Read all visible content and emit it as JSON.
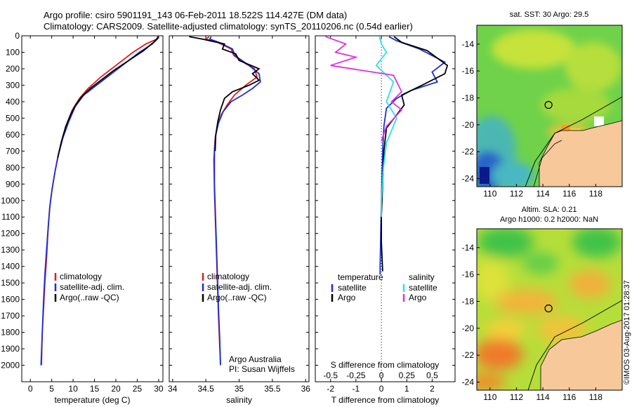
{
  "header": {
    "line1": "Argo profile: csiro 5901191_143 06-Feb-2011 18.522S 114.427E (DM data)",
    "line2": "Climatology: CARS2009. Satellite-adjusted climatology: synTS_20110206.nc (0.54d earlier)"
  },
  "footer": {
    "credit": "©IMOS 03-Aug-2017 01:28:37"
  },
  "colors": {
    "climatology": "#e01b1b",
    "satellite": "#1a2fd6",
    "argo": "#000000",
    "salinity_satellite": "#28e0e8",
    "salinity_argo": "#e030e0",
    "land": "#f7c89a"
  },
  "chart_data": [
    {
      "type": "line",
      "panel": "temperature",
      "xlabel": "temperature (deg C)",
      "ylabel": "",
      "xlim": [
        -2,
        31
      ],
      "ylim": [
        2100,
        0
      ],
      "xticks": [
        0,
        5,
        10,
        15,
        20,
        25,
        30
      ],
      "yticks": [
        0,
        100,
        200,
        300,
        400,
        500,
        600,
        700,
        800,
        900,
        1000,
        1100,
        1200,
        1300,
        1400,
        1500,
        1600,
        1700,
        1800,
        1900,
        2000
      ],
      "legend": [
        "climatology",
        "satellite-adj. clim.",
        "Argo(..raw -QC)"
      ],
      "legend_position": "bottom-right",
      "series": [
        {
          "name": "climatology",
          "points": [
            [
              29.8,
              5
            ],
            [
              29.6,
              20
            ],
            [
              27,
              50
            ],
            [
              24,
              100
            ],
            [
              20,
              180
            ],
            [
              16.5,
              250
            ],
            [
              13.5,
              320
            ],
            [
              11.5,
              380
            ],
            [
              9.8,
              450
            ],
            [
              8.3,
              550
            ],
            [
              7.2,
              650
            ],
            [
              6.3,
              750
            ],
            [
              5.6,
              850
            ],
            [
              5.0,
              950
            ],
            [
              4.5,
              1050
            ],
            [
              4.1,
              1200
            ],
            [
              3.8,
              1350
            ],
            [
              3.4,
              1500
            ],
            [
              3.1,
              1650
            ],
            [
              2.8,
              1800
            ],
            [
              2.6,
              2000
            ]
          ]
        },
        {
          "name": "satellite-adj. clim.",
          "points": [
            [
              29.9,
              5
            ],
            [
              29.7,
              20
            ],
            [
              28.5,
              50
            ],
            [
              25.5,
              100
            ],
            [
              22,
              170
            ],
            [
              18,
              250
            ],
            [
              15,
              310
            ],
            [
              12.5,
              360
            ],
            [
              10.5,
              430
            ],
            [
              9,
              520
            ],
            [
              7.6,
              620
            ],
            [
              6.6,
              720
            ],
            [
              5.8,
              820
            ],
            [
              5.1,
              930
            ],
            [
              4.6,
              1030
            ],
            [
              4.2,
              1150
            ],
            [
              3.8,
              1300
            ],
            [
              3.4,
              1450
            ],
            [
              3.1,
              1600
            ],
            [
              2.8,
              1800
            ],
            [
              2.5,
              2000
            ]
          ]
        },
        {
          "name": "Argo(..raw -QC)",
          "points": [
            [
              29.9,
              5
            ],
            [
              29.7,
              15
            ],
            [
              28.8,
              40
            ],
            [
              26.5,
              90
            ],
            [
              23,
              150
            ],
            [
              19.5,
              210
            ],
            [
              16.5,
              270
            ],
            [
              14,
              320
            ],
            [
              12,
              370
            ],
            [
              10.6,
              420
            ],
            [
              9.4,
              480
            ],
            [
              8.3,
              550
            ],
            [
              7.3,
              640
            ],
            [
              6.4,
              740
            ]
          ]
        }
      ]
    },
    {
      "type": "line",
      "panel": "salinity",
      "xlabel": "salinity",
      "ylabel": "",
      "xlim": [
        33.95,
        36.05
      ],
      "ylim": [
        2100,
        0
      ],
      "xticks": [
        34,
        34.5,
        35,
        35.5,
        36
      ],
      "legend": [
        "climatology",
        "satellite-adj. clim.",
        "Argo(..raw -QC)"
      ],
      "legend_position": "bottom-right",
      "annotations": [
        "Argo Australia",
        "PI: Susan Wijffels"
      ],
      "series": [
        {
          "name": "climatology",
          "points": [
            [
              34.55,
              5
            ],
            [
              34.5,
              20
            ],
            [
              34.68,
              40
            ],
            [
              34.88,
              80
            ],
            [
              34.92,
              120
            ],
            [
              35.1,
              170
            ],
            [
              35.23,
              200
            ],
            [
              35.27,
              250
            ],
            [
              35.1,
              300
            ],
            [
              34.93,
              360
            ],
            [
              34.82,
              420
            ],
            [
              34.73,
              480
            ],
            [
              34.68,
              540
            ],
            [
              34.64,
              620
            ],
            [
              34.62,
              750
            ],
            [
              34.63,
              950
            ],
            [
              34.65,
              1200
            ],
            [
              34.67,
              1450
            ],
            [
              34.69,
              1700
            ],
            [
              34.72,
              2000
            ]
          ]
        },
        {
          "name": "satellite-adj. clim.",
          "points": [
            [
              34.58,
              5
            ],
            [
              34.56,
              20
            ],
            [
              34.7,
              40
            ],
            [
              34.9,
              80
            ],
            [
              34.94,
              120
            ],
            [
              35.15,
              180
            ],
            [
              35.3,
              230
            ],
            [
              35.32,
              280
            ],
            [
              35.2,
              320
            ],
            [
              35.05,
              360
            ],
            [
              34.88,
              400
            ],
            [
              34.76,
              460
            ],
            [
              34.69,
              530
            ],
            [
              34.65,
              600
            ],
            [
              34.63,
              700
            ],
            [
              34.63,
              900
            ],
            [
              34.65,
              1150
            ],
            [
              34.67,
              1400
            ],
            [
              34.69,
              1650
            ],
            [
              34.71,
              1850
            ],
            [
              34.72,
              2000
            ]
          ]
        },
        {
          "name": "Argo(..raw -QC)",
          "points": [
            [
              34.25,
              5
            ],
            [
              34.45,
              20
            ],
            [
              34.78,
              50
            ],
            [
              34.75,
              80
            ],
            [
              34.95,
              110
            ],
            [
              35.0,
              150
            ],
            [
              35.3,
              200
            ],
            [
              35.2,
              230
            ],
            [
              35.3,
              270
            ],
            [
              35.15,
              300
            ],
            [
              34.9,
              340
            ],
            [
              34.78,
              380
            ],
            [
              34.72,
              450
            ],
            [
              34.68,
              520
            ],
            [
              34.65,
              600
            ],
            [
              34.64,
              700
            ]
          ]
        }
      ]
    },
    {
      "type": "line",
      "panel": "difference",
      "xlabel": "T difference from climatology",
      "xlabel_top": "S difference from climatology",
      "xlim": [
        -2.6,
        2.9
      ],
      "ylim": [
        2100,
        0
      ],
      "xticks": [
        -2,
        -1,
        0,
        1,
        2
      ],
      "s_ticks": [
        -0.5,
        -0.25,
        0,
        0.25,
        0.5
      ],
      "zero_line": "dotted",
      "legend_temperature": {
        "header": "temperature",
        "items": [
          "satellite",
          "Argo"
        ]
      },
      "legend_salinity": {
        "header": "salinity",
        "items": [
          "satellite",
          "Argo"
        ]
      },
      "series": [
        {
          "name": "satellite",
          "group": "temperature",
          "points": [
            [
              0.3,
              5
            ],
            [
              0.6,
              30
            ],
            [
              1.5,
              80
            ],
            [
              2.0,
              120
            ],
            [
              2.5,
              160
            ],
            [
              2.0,
              220
            ],
            [
              2.2,
              280
            ],
            [
              1.2,
              330
            ],
            [
              0.6,
              380
            ],
            [
              0.2,
              440
            ],
            [
              0.1,
              550
            ],
            [
              0.05,
              700
            ],
            [
              0.0,
              1000
            ],
            [
              -0.05,
              1400
            ],
            [
              -0.05,
              1450
            ]
          ]
        },
        {
          "name": "Argo",
          "group": "temperature",
          "points": [
            [
              0.5,
              5
            ],
            [
              0.8,
              40
            ],
            [
              1.8,
              90
            ],
            [
              2.6,
              180
            ],
            [
              2.5,
              230
            ],
            [
              1.6,
              300
            ],
            [
              0.8,
              360
            ],
            [
              0.9,
              420
            ],
            [
              0.5,
              500
            ],
            [
              0.2,
              560
            ],
            [
              0.1,
              700
            ],
            [
              0.05,
              900
            ],
            [
              0.0,
              1100
            ],
            [
              0.0,
              1250
            ],
            [
              0.05,
              1430
            ]
          ]
        },
        {
          "name": "satellite",
          "group": "salinity",
          "points": [
            [
              -0.02,
              5
            ],
            [
              0.0,
              50
            ],
            [
              0.05,
              100
            ],
            [
              -0.05,
              180
            ],
            [
              0.12,
              280
            ],
            [
              0.05,
              400
            ],
            [
              0.15,
              500
            ],
            [
              0.05,
              650
            ],
            [
              0.02,
              800
            ],
            [
              0.0,
              1000
            ],
            [
              0.0,
              1100
            ]
          ]
        },
        {
          "name": "Argo",
          "group": "salinity",
          "points": [
            [
              -0.55,
              5
            ],
            [
              -0.35,
              50
            ],
            [
              -0.45,
              100
            ],
            [
              -0.25,
              130
            ],
            [
              -0.5,
              180
            ],
            [
              0.12,
              240
            ],
            [
              0.2,
              340
            ],
            [
              0.1,
              400
            ],
            [
              0.2,
              450
            ],
            [
              0.05,
              550
            ],
            [
              0.0,
              640
            ]
          ]
        }
      ]
    },
    {
      "type": "heatmap",
      "panel": "sst_map",
      "title": "sat. SST: 30 Argo: 29.5",
      "xlim": [
        109,
        120
      ],
      "ylim": [
        -24.6,
        -12.6
      ],
      "xticks": [
        110,
        112,
        114,
        116,
        118
      ],
      "yticks": [
        -14,
        -16,
        -18,
        -20,
        -22,
        -24
      ],
      "argo_position": [
        114.427,
        -18.522
      ]
    },
    {
      "type": "heatmap",
      "panel": "sla_map",
      "title": "Altim. SLA: 0.21",
      "subtitle": "Argo h1000: 0.2 h2000: NaN",
      "xlim": [
        109,
        120
      ],
      "ylim": [
        -24.6,
        -12.6
      ],
      "xticks": [
        110,
        112,
        114,
        116,
        118
      ],
      "yticks": [
        -14,
        -16,
        -18,
        -20,
        -22,
        -24
      ],
      "argo_position": [
        114.427,
        -18.522
      ]
    }
  ]
}
